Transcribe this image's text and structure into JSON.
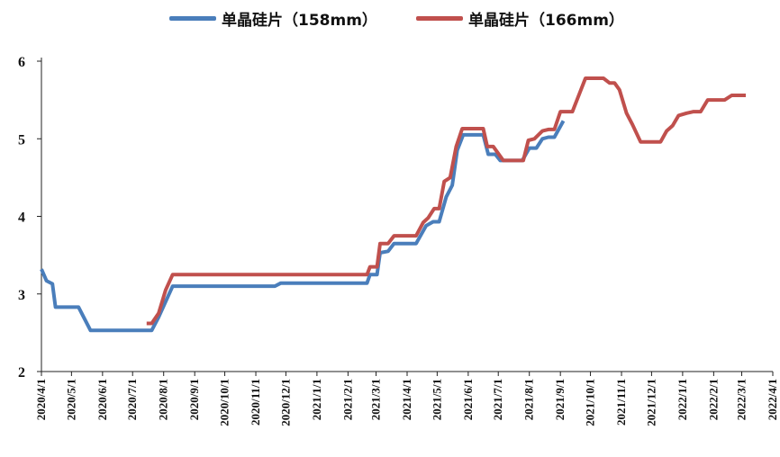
{
  "chart_data": {
    "type": "line",
    "title": "",
    "xlabel": "",
    "ylabel": "",
    "ylim": [
      2,
      6
    ],
    "yticks": [
      "2",
      "3",
      "4",
      "5",
      "6"
    ],
    "xticks": [
      "2020/4/1",
      "2020/5/1",
      "2020/6/1",
      "2020/7/1",
      "2020/8/1",
      "2020/9/1",
      "2020/10/1",
      "2020/11/1",
      "2020/12/1",
      "2021/1/1",
      "2021/2/1",
      "2021/3/1",
      "2021/4/1",
      "2021/5/1",
      "2021/6/1",
      "2021/7/1",
      "2021/8/1",
      "2021/9/1",
      "2021/10/1",
      "2021/11/1",
      "2021/12/1",
      "2022/1/1",
      "2022/2/1",
      "2022/3/1",
      "2022/4/1"
    ],
    "grid": false,
    "legend_position": "top",
    "series": [
      {
        "name": "单晶硅片（158mm）",
        "color": "#4a7ebb",
        "points": [
          [
            "2020/4/1",
            3.32
          ],
          [
            "2020/4/6",
            3.17
          ],
          [
            "2020/4/12",
            3.13
          ],
          [
            "2020/4/15",
            2.83
          ],
          [
            "2020/4/25",
            2.83
          ],
          [
            "2020/5/8",
            2.83
          ],
          [
            "2020/5/20",
            2.53
          ],
          [
            "2020/6/1",
            2.53
          ],
          [
            "2020/7/1",
            2.53
          ],
          [
            "2020/7/20",
            2.53
          ],
          [
            "2020/7/27",
            2.7
          ],
          [
            "2020/8/10",
            3.1
          ],
          [
            "2020/9/1",
            3.1
          ],
          [
            "2020/10/1",
            3.1
          ],
          [
            "2020/11/1",
            3.1
          ],
          [
            "2020/11/20",
            3.1
          ],
          [
            "2020/11/26",
            3.14
          ],
          [
            "2020/12/1",
            3.14
          ],
          [
            "2021/1/1",
            3.14
          ],
          [
            "2021/2/1",
            3.14
          ],
          [
            "2021/2/20",
            3.14
          ],
          [
            "2021/2/23",
            3.25
          ],
          [
            "2021/3/2",
            3.25
          ],
          [
            "2021/3/5",
            3.53
          ],
          [
            "2021/3/13",
            3.55
          ],
          [
            "2021/3/19",
            3.65
          ],
          [
            "2021/4/1",
            3.65
          ],
          [
            "2021/4/10",
            3.65
          ],
          [
            "2021/4/20",
            3.88
          ],
          [
            "2021/4/27",
            3.93
          ],
          [
            "2021/5/3",
            3.93
          ],
          [
            "2021/5/10",
            4.25
          ],
          [
            "2021/5/16",
            4.4
          ],
          [
            "2021/5/21",
            4.85
          ],
          [
            "2021/5/27",
            5.05
          ],
          [
            "2021/6/1",
            5.05
          ],
          [
            "2021/6/16",
            5.05
          ],
          [
            "2021/6/21",
            4.8
          ],
          [
            "2021/6/28",
            4.8
          ],
          [
            "2021/7/3",
            4.72
          ],
          [
            "2021/7/15",
            4.72
          ],
          [
            "2021/7/25",
            4.72
          ],
          [
            "2021/8/1",
            4.88
          ],
          [
            "2021/8/8",
            4.88
          ],
          [
            "2021/8/14",
            5.0
          ],
          [
            "2021/8/20",
            5.02
          ],
          [
            "2021/8/26",
            5.02
          ],
          [
            "2021/9/4",
            5.23
          ]
        ]
      },
      {
        "name": "单晶硅片（166mm）",
        "color": "#c0504d",
        "points": [
          [
            "2020/7/15",
            2.62
          ],
          [
            "2020/7/20",
            2.62
          ],
          [
            "2020/7/27",
            2.75
          ],
          [
            "2020/8/3",
            3.05
          ],
          [
            "2020/8/10",
            3.25
          ],
          [
            "2020/9/1",
            3.25
          ],
          [
            "2020/10/1",
            3.25
          ],
          [
            "2020/11/1",
            3.25
          ],
          [
            "2020/12/1",
            3.25
          ],
          [
            "2021/1/1",
            3.25
          ],
          [
            "2021/2/1",
            3.25
          ],
          [
            "2021/2/20",
            3.25
          ],
          [
            "2021/2/23",
            3.35
          ],
          [
            "2021/3/2",
            3.35
          ],
          [
            "2021/3/5",
            3.65
          ],
          [
            "2021/3/13",
            3.65
          ],
          [
            "2021/3/19",
            3.75
          ],
          [
            "2021/4/1",
            3.75
          ],
          [
            "2021/4/10",
            3.75
          ],
          [
            "2021/4/17",
            3.92
          ],
          [
            "2021/4/22",
            3.98
          ],
          [
            "2021/4/28",
            4.1
          ],
          [
            "2021/5/3",
            4.1
          ],
          [
            "2021/5/8",
            4.45
          ],
          [
            "2021/5/14",
            4.5
          ],
          [
            "2021/5/20",
            4.9
          ],
          [
            "2021/5/26",
            5.13
          ],
          [
            "2021/6/1",
            5.13
          ],
          [
            "2021/6/16",
            5.13
          ],
          [
            "2021/6/20",
            4.9
          ],
          [
            "2021/6/26",
            4.9
          ],
          [
            "2021/7/6",
            4.72
          ],
          [
            "2021/7/16",
            4.72
          ],
          [
            "2021/7/26",
            4.72
          ],
          [
            "2021/7/31",
            4.98
          ],
          [
            "2021/8/6",
            5.0
          ],
          [
            "2021/8/14",
            5.1
          ],
          [
            "2021/8/20",
            5.12
          ],
          [
            "2021/8/26",
            5.12
          ],
          [
            "2021/9/1",
            5.35
          ],
          [
            "2021/9/7",
            5.35
          ],
          [
            "2021/9/13",
            5.35
          ],
          [
            "2021/9/20",
            5.58
          ],
          [
            "2021/9/26",
            5.78
          ],
          [
            "2021/10/1",
            5.78
          ],
          [
            "2021/10/8",
            5.78
          ],
          [
            "2021/10/14",
            5.78
          ],
          [
            "2021/10/20",
            5.72
          ],
          [
            "2021/10/25",
            5.72
          ],
          [
            "2021/10/30",
            5.63
          ],
          [
            "2021/11/6",
            5.33
          ],
          [
            "2021/11/12",
            5.18
          ],
          [
            "2021/11/20",
            4.96
          ],
          [
            "2021/11/27",
            4.96
          ],
          [
            "2021/12/5",
            4.96
          ],
          [
            "2021/12/10",
            4.96
          ],
          [
            "2021/12/16",
            5.1
          ],
          [
            "2021/12/22",
            5.17
          ],
          [
            "2021/12/28",
            5.3
          ],
          [
            "2022/1/5",
            5.33
          ],
          [
            "2022/1/12",
            5.35
          ],
          [
            "2022/1/19",
            5.35
          ],
          [
            "2022/1/26",
            5.5
          ],
          [
            "2022/2/4",
            5.5
          ],
          [
            "2022/2/12",
            5.5
          ],
          [
            "2022/2/19",
            5.56
          ],
          [
            "2022/2/26",
            5.56
          ],
          [
            "2022/3/5",
            5.56
          ]
        ]
      }
    ]
  }
}
